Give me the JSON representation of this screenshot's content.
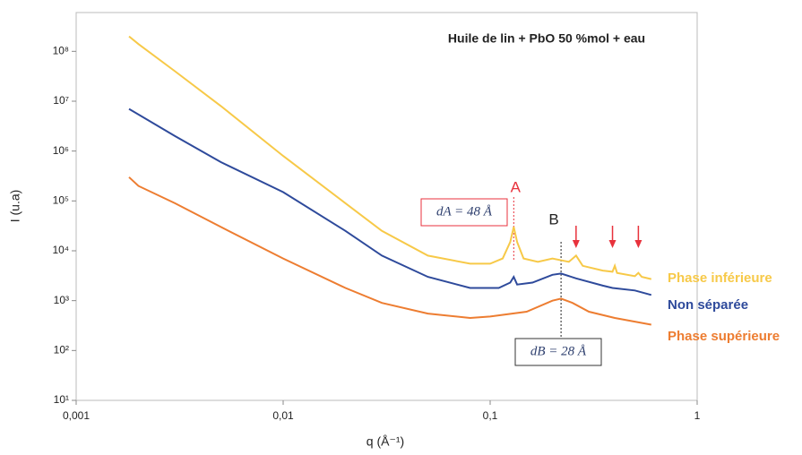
{
  "chart_data": {
    "type": "line",
    "title": "Huile de lin + PbO 50 %mol + eau",
    "xlabel": "q (Å⁻¹)",
    "ylabel": "I (u.a)",
    "xscale": "log",
    "yscale": "log",
    "xlim": [
      0.001,
      1
    ],
    "ylim": [
      10,
      600000000
    ],
    "xticks": [
      {
        "value": 0.001,
        "label": "0,001"
      },
      {
        "value": 0.01,
        "label": "0,01"
      },
      {
        "value": 0.1,
        "label": "0,1"
      },
      1
    ],
    "yticks": [
      {
        "value": 10,
        "label": "10¹"
      },
      {
        "value": 100,
        "label": "10²"
      },
      {
        "value": 1000,
        "label": "10³"
      },
      {
        "value": 10000,
        "label": "10⁴"
      },
      {
        "value": 100000,
        "label": "10⁵"
      },
      {
        "value": 1000000,
        "label": "10⁶"
      },
      {
        "value": 10000000,
        "label": "10⁷"
      },
      {
        "value": 100000000,
        "label": "10⁸"
      }
    ],
    "legend": "right",
    "series": [
      {
        "name": "Phase inférieure",
        "color": "#f7c948",
        "x": [
          0.0018,
          0.002,
          0.003,
          0.005,
          0.01,
          0.02,
          0.03,
          0.05,
          0.08,
          0.1,
          0.115,
          0.125,
          0.13,
          0.135,
          0.145,
          0.17,
          0.2,
          0.24,
          0.26,
          0.28,
          0.35,
          0.39,
          0.4,
          0.41,
          0.5,
          0.52,
          0.54,
          0.6
        ],
        "values": [
          200000000,
          140000000,
          40000000,
          8000000,
          800000,
          90000,
          25000,
          8000,
          5500,
          5500,
          7000,
          15000,
          30000,
          15000,
          7000,
          6000,
          7000,
          6000,
          8000,
          5000,
          4000,
          3800,
          5000,
          3600,
          3100,
          3600,
          3000,
          2700
        ]
      },
      {
        "name": "Non séparée",
        "color": "#2e4a9b",
        "x": [
          0.0018,
          0.003,
          0.005,
          0.01,
          0.02,
          0.03,
          0.05,
          0.08,
          0.11,
          0.125,
          0.13,
          0.135,
          0.16,
          0.2,
          0.22,
          0.26,
          0.35,
          0.39,
          0.5,
          0.6
        ],
        "values": [
          7000000,
          2000000,
          600000,
          150000,
          25000,
          8000,
          3000,
          1800,
          1800,
          2300,
          3000,
          2100,
          2300,
          3300,
          3500,
          2800,
          2000,
          1800,
          1600,
          1300
        ]
      },
      {
        "name": "Phase supérieure",
        "color": "#ed7d31",
        "x": [
          0.0018,
          0.002,
          0.003,
          0.005,
          0.01,
          0.02,
          0.03,
          0.05,
          0.08,
          0.1,
          0.15,
          0.2,
          0.22,
          0.25,
          0.3,
          0.4,
          0.6
        ],
        "values": [
          300000,
          200000,
          90000,
          30000,
          7000,
          1800,
          900,
          550,
          450,
          480,
          600,
          1000,
          1100,
          900,
          600,
          450,
          330
        ]
      }
    ],
    "annotations": [
      {
        "text": "A",
        "color": "#e8323c",
        "x": 0.13,
        "box": "dA = 48 Å"
      },
      {
        "text": "B",
        "color": "#222222",
        "x": 0.22,
        "box": "dB = 28 Å"
      }
    ],
    "peak_arrows": [
      0.26,
      0.39,
      0.52
    ]
  }
}
